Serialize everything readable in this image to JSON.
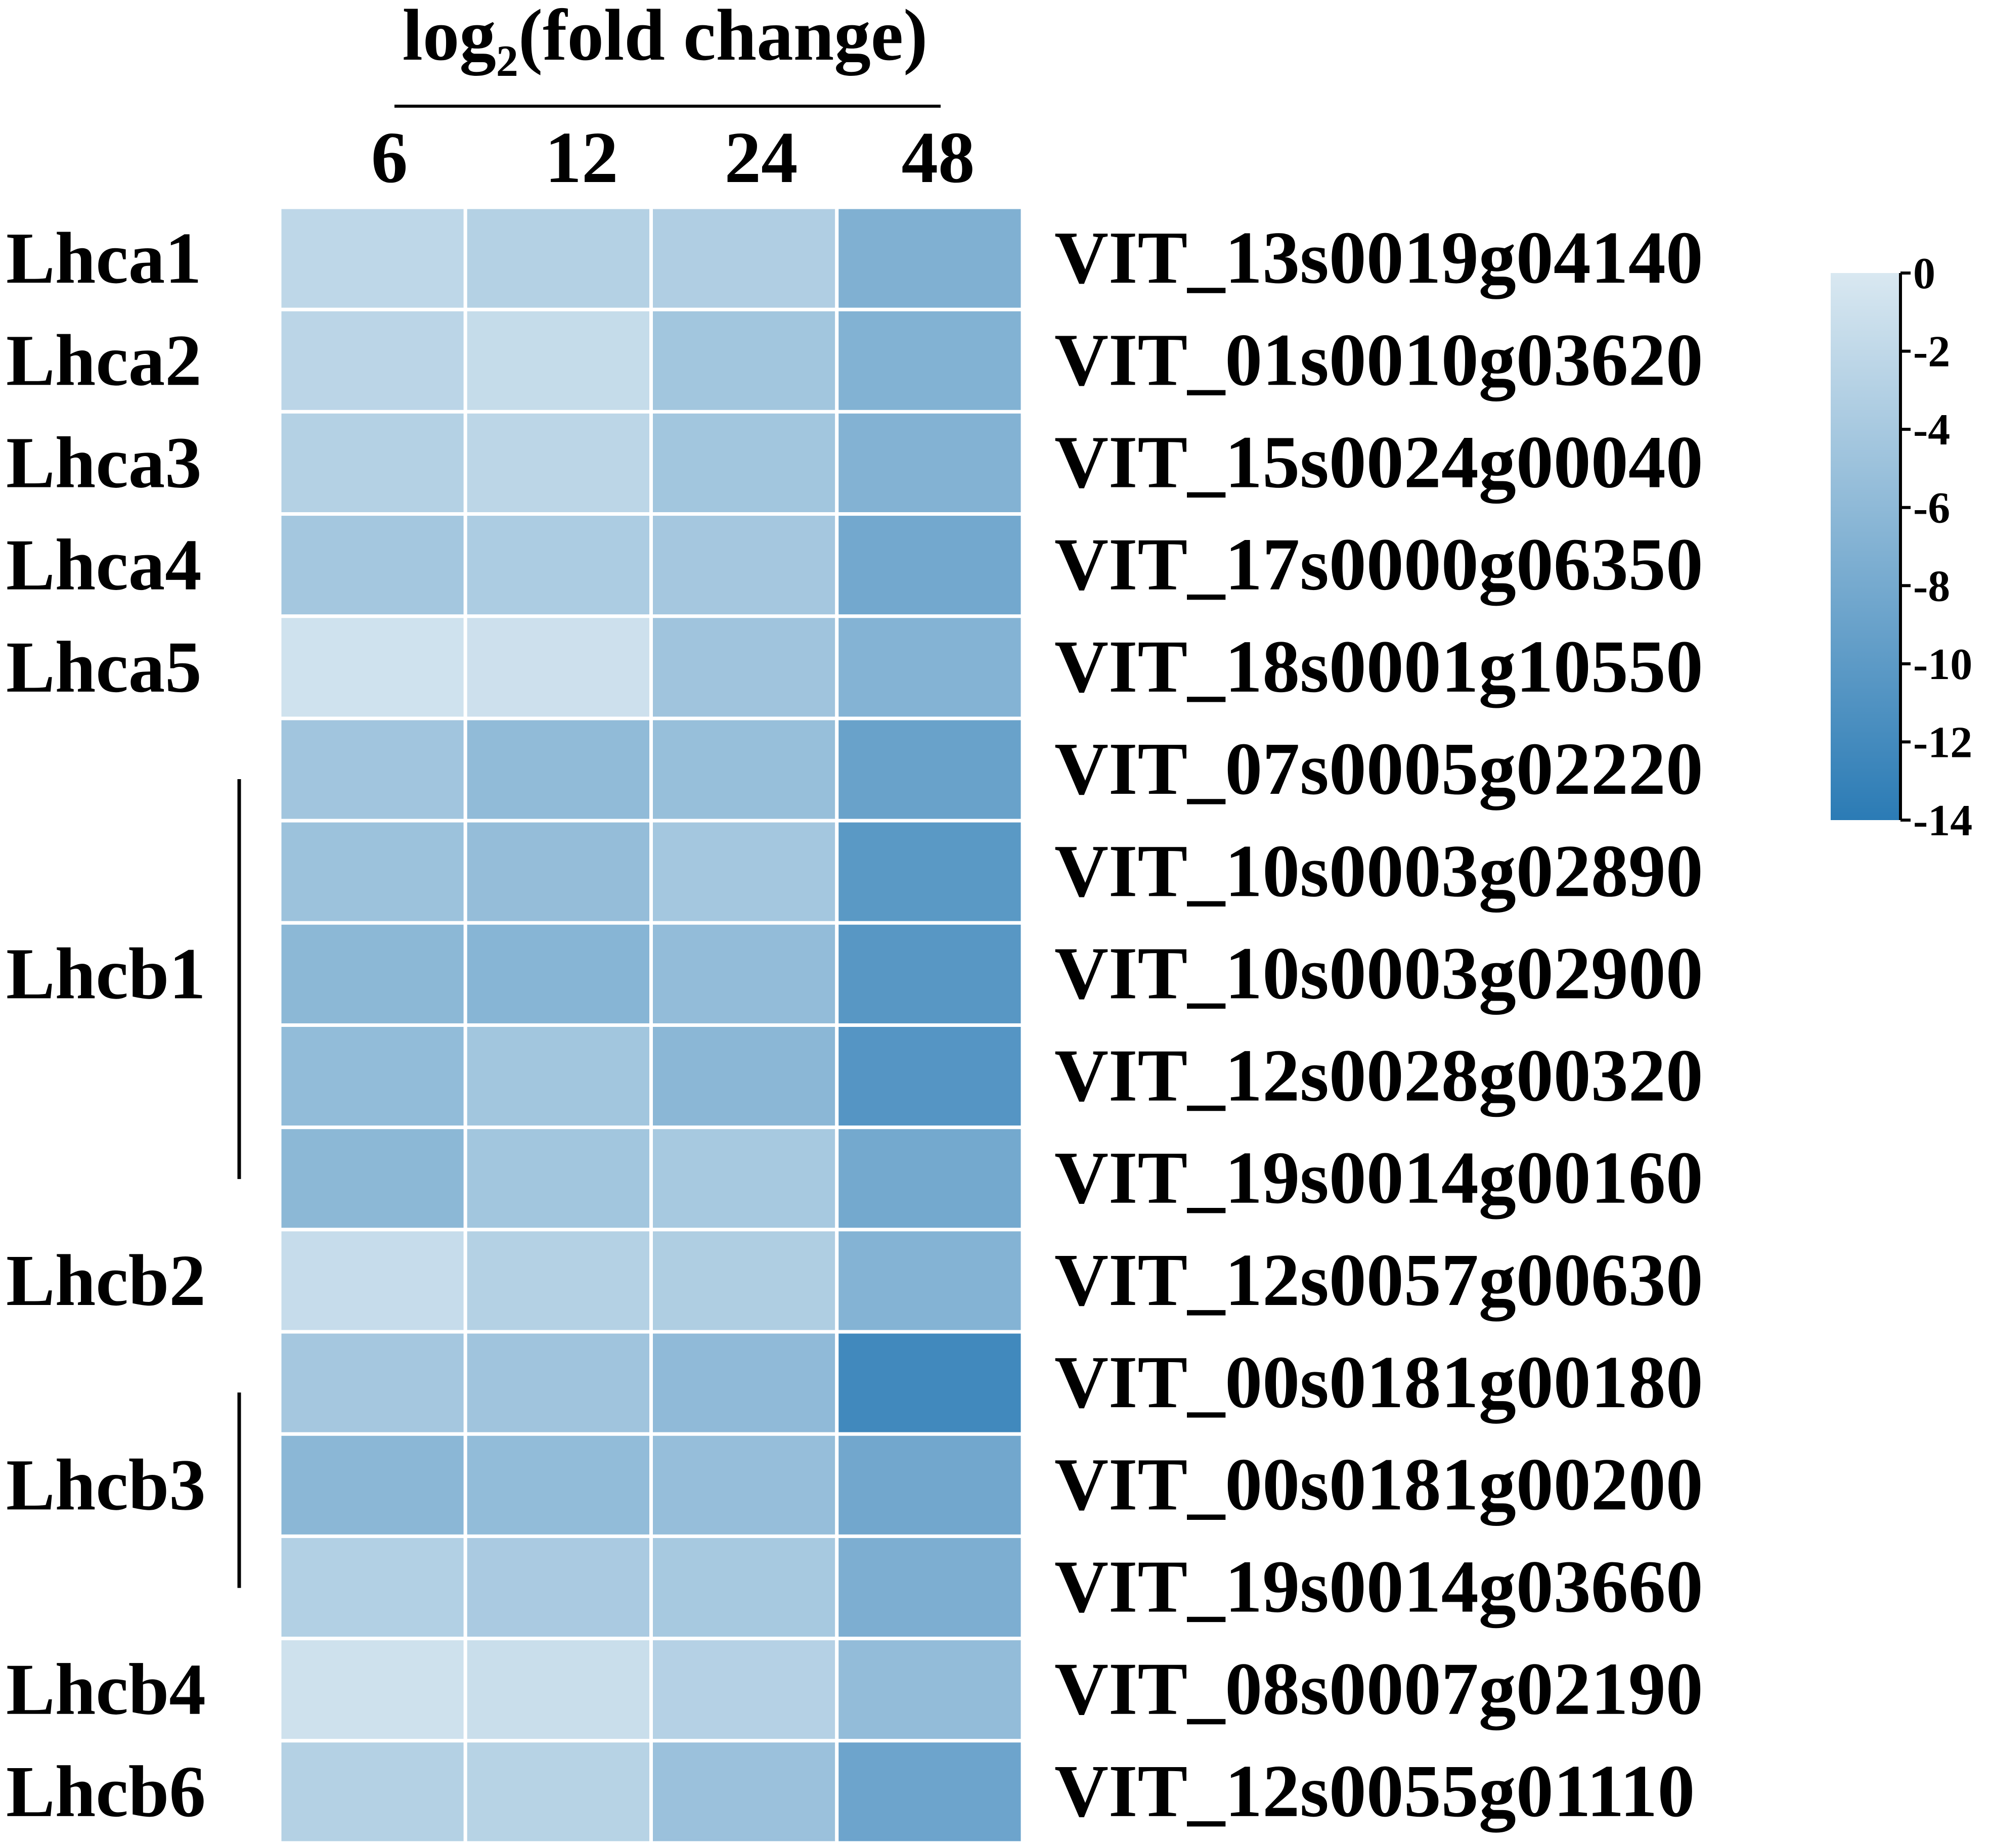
{
  "chart_data": {
    "type": "heatmap",
    "title": "log",
    "title_subscript": "2",
    "title_suffix": "(fold change)",
    "columns": [
      "6",
      "12",
      "24",
      "48"
    ],
    "rows": [
      "VIT_13s0019g04140",
      "VIT_01s0010g03620",
      "VIT_15s0024g00040",
      "VIT_17s0000g06350",
      "VIT_18s0001g10550",
      "VIT_07s0005g02220",
      "VIT_10s0003g02890",
      "VIT_10s0003g02900",
      "VIT_12s0028g00320",
      "VIT_19s0014g00160",
      "VIT_12s0057g00630",
      "VIT_00s0181g00180",
      "VIT_00s0181g00200",
      "VIT_19s0014g03660",
      "VIT_08s0007g02190",
      "VIT_12s0055g01110"
    ],
    "groups": [
      {
        "label": "Lhca1",
        "rows": [
          0
        ]
      },
      {
        "label": "Lhca2",
        "rows": [
          1
        ]
      },
      {
        "label": "Lhca3",
        "rows": [
          2
        ]
      },
      {
        "label": "Lhca4",
        "rows": [
          3
        ]
      },
      {
        "label": "Lhca5",
        "rows": [
          4
        ]
      },
      {
        "label": "Lhcb1",
        "rows": [
          5,
          6,
          7,
          8,
          9
        ],
        "bracket": true
      },
      {
        "label": "Lhcb2",
        "rows": [
          10
        ]
      },
      {
        "label": "Lhcb3",
        "rows": [
          11,
          12,
          13
        ],
        "bracket": true
      },
      {
        "label": "Lhcb4",
        "rows": [
          14
        ]
      },
      {
        "label": "Lhcb6",
        "rows": [
          15
        ]
      }
    ],
    "values": [
      [
        -2.2,
        -3.0,
        -3.3,
        -7.2
      ],
      [
        -2.4,
        -1.6,
        -4.4,
        -7.0
      ],
      [
        -3.0,
        -2.3,
        -4.4,
        -6.9
      ],
      [
        -4.3,
        -3.6,
        -4.2,
        -8.2
      ],
      [
        -0.8,
        -1.0,
        -4.6,
        -6.8
      ],
      [
        -4.5,
        -5.8,
        -5.3,
        -9.0
      ],
      [
        -4.9,
        -5.5,
        -4.3,
        -10.2
      ],
      [
        -6.2,
        -6.6,
        -5.6,
        -10.4
      ],
      [
        -5.7,
        -4.4,
        -6.3,
        -10.6
      ],
      [
        -6.2,
        -4.4,
        -4.0,
        -8.1
      ],
      [
        -1.5,
        -3.0,
        -3.4,
        -6.8
      ],
      [
        -4.2,
        -4.6,
        -5.9,
        -12.2
      ],
      [
        -6.3,
        -5.7,
        -5.4,
        -8.3
      ],
      [
        -3.1,
        -3.8,
        -4.0,
        -7.4
      ],
      [
        -0.9,
        -1.3,
        -2.9,
        -5.6
      ],
      [
        -3.0,
        -2.7,
        -5.0,
        -8.7
      ]
    ],
    "colorbar": {
      "range": [
        -14,
        0
      ],
      "ticks": [
        "0",
        "-2",
        "-4",
        "-6",
        "-8",
        "-10",
        "-12",
        "-14"
      ],
      "color_low": "#2b7bb5",
      "color_high": "#d9e8f1"
    },
    "grid_color": "#ffffff"
  }
}
